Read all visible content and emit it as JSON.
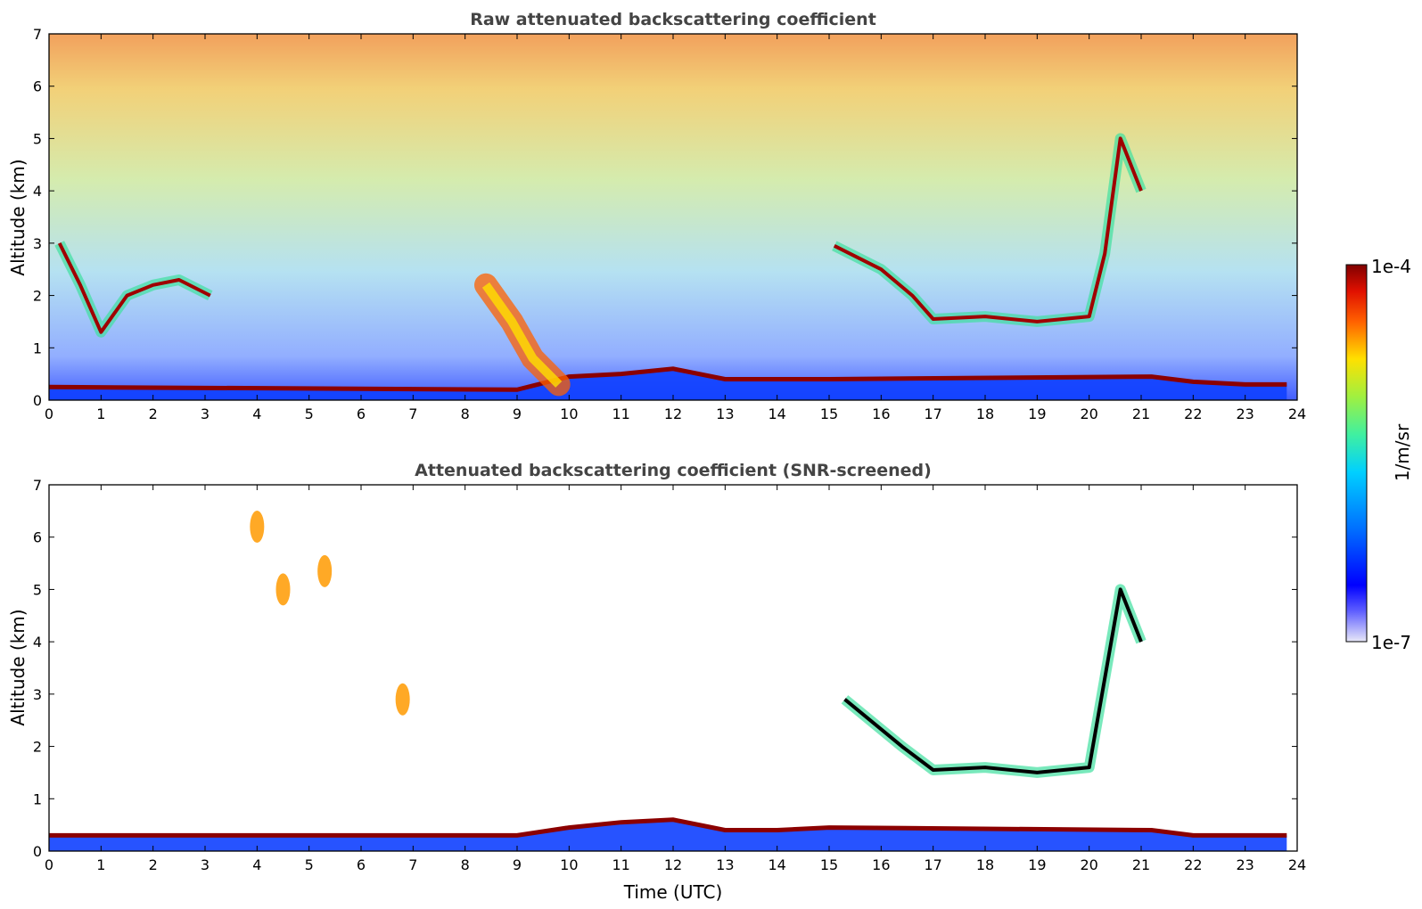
{
  "chart_data": [
    {
      "type": "heatmap",
      "title": "Raw attenuated backscattering coefficient",
      "xlabel": "",
      "ylabel": "Altitude (km)",
      "xlim": [
        0,
        24
      ],
      "ylim": [
        0,
        7
      ],
      "xticks": [
        "0",
        "1",
        "2",
        "3",
        "4",
        "5",
        "6",
        "7",
        "8",
        "9",
        "10",
        "11",
        "12",
        "13",
        "14",
        "15",
        "16",
        "17",
        "18",
        "19",
        "20",
        "21",
        "22",
        "23",
        "24"
      ],
      "yticks": [
        "0",
        "1",
        "2",
        "3",
        "4",
        "5",
        "6",
        "7"
      ],
      "features": [
        {
          "name": "noise-background",
          "note": "noise increasing with altitude, high values above ~4 km"
        },
        {
          "name": "boundary-layer",
          "points": [
            [
              0,
              0.25
            ],
            [
              9,
              0.2
            ],
            [
              10,
              0.45
            ],
            [
              11,
              0.5
            ],
            [
              12,
              0.6
            ],
            [
              13,
              0.4
            ],
            [
              14,
              0.4
            ],
            [
              15,
              0.4
            ],
            [
              21.2,
              0.45
            ],
            [
              22,
              0.35
            ],
            [
              23,
              0.3
            ],
            [
              23.8,
              0.3
            ]
          ]
        },
        {
          "name": "low-cloud-morning",
          "points": [
            [
              0.2,
              3.0
            ],
            [
              0.6,
              2.2
            ],
            [
              1.0,
              1.3
            ],
            [
              1.5,
              2.0
            ],
            [
              2.0,
              2.2
            ],
            [
              2.5,
              2.3
            ],
            [
              3.1,
              2.0
            ]
          ]
        },
        {
          "name": "aerosol-plume",
          "points": [
            [
              8.4,
              2.2
            ],
            [
              8.9,
              1.5
            ],
            [
              9.3,
              0.8
            ],
            [
              9.8,
              0.3
            ]
          ]
        },
        {
          "name": "cloud-band-afternoon",
          "points": [
            [
              15.1,
              2.95
            ],
            [
              16.0,
              2.5
            ],
            [
              16.6,
              2.0
            ],
            [
              17.0,
              1.55
            ],
            [
              18.0,
              1.6
            ],
            [
              19.0,
              1.5
            ],
            [
              20.0,
              1.6
            ],
            [
              20.3,
              2.8
            ],
            [
              20.6,
              5.0
            ],
            [
              21.0,
              4.0
            ]
          ]
        }
      ]
    },
    {
      "type": "heatmap",
      "title": "Attenuated backscattering coefficient (SNR-screened)",
      "xlabel": "Time (UTC)",
      "ylabel": "Altitude (km)",
      "xlim": [
        0,
        24
      ],
      "ylim": [
        0,
        7
      ],
      "xticks": [
        "0",
        "1",
        "2",
        "3",
        "4",
        "5",
        "6",
        "7",
        "8",
        "9",
        "10",
        "11",
        "12",
        "13",
        "14",
        "15",
        "16",
        "17",
        "18",
        "19",
        "20",
        "21",
        "22",
        "23",
        "24"
      ],
      "yticks": [
        "0",
        "1",
        "2",
        "3",
        "4",
        "5",
        "6",
        "7"
      ],
      "features": [
        {
          "name": "boundary-layer",
          "points": [
            [
              0,
              0.3
            ],
            [
              9,
              0.3
            ],
            [
              10,
              0.45
            ],
            [
              11,
              0.55
            ],
            [
              12,
              0.6
            ],
            [
              13,
              0.4
            ],
            [
              14,
              0.4
            ],
            [
              15,
              0.45
            ],
            [
              21.2,
              0.4
            ],
            [
              22,
              0.3
            ],
            [
              23.8,
              0.3
            ]
          ]
        },
        {
          "name": "high-aerosol",
          "points": [
            [
              4.0,
              6.2
            ],
            [
              4.5,
              5.0
            ],
            [
              5.3,
              5.35
            ],
            [
              6.8,
              2.9
            ]
          ]
        },
        {
          "name": "cloud-band-afternoon",
          "points": [
            [
              15.3,
              2.9
            ],
            [
              16.4,
              2.0
            ],
            [
              17.0,
              1.55
            ],
            [
              18.0,
              1.6
            ],
            [
              19.0,
              1.5
            ],
            [
              20.0,
              1.6
            ],
            [
              20.6,
              5.0
            ],
            [
              21.0,
              4.0
            ]
          ]
        }
      ]
    }
  ],
  "colorbar": {
    "label": "1/m/sr",
    "max_label": "1e-4",
    "min_label": "1e-7",
    "scale": "log",
    "colormap": "jet"
  }
}
